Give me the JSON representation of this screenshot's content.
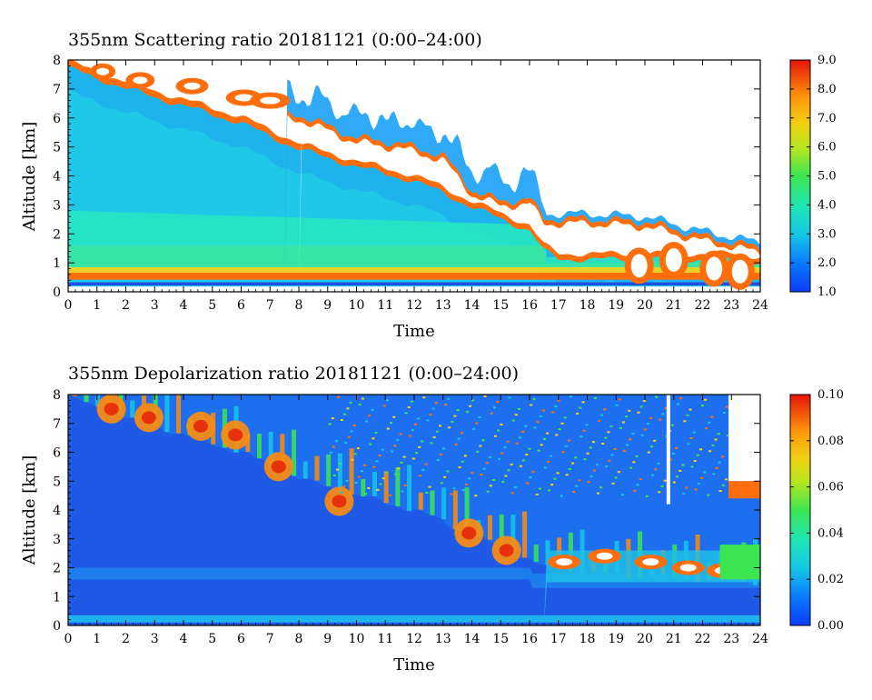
{
  "chart_data": [
    {
      "type": "heatmap",
      "title": "355nm Scattering ratio  20181121 (0:00–24:00)",
      "xlabel": "Time",
      "ylabel": "Altitude [km]",
      "xlim": [
        0,
        24
      ],
      "ylim": [
        0,
        8
      ],
      "x_ticks": [
        0,
        1,
        2,
        3,
        4,
        5,
        6,
        7,
        8,
        9,
        10,
        11,
        12,
        13,
        14,
        15,
        16,
        17,
        18,
        19,
        20,
        21,
        22,
        23,
        24
      ],
      "y_ticks": [
        0,
        1,
        2,
        3,
        4,
        5,
        6,
        7,
        8
      ],
      "colorbar": {
        "min": 1.0,
        "max": 9.0,
        "ticks": [
          "1.0",
          "2.0",
          "3.0",
          "4.0",
          "5.0",
          "6.0",
          "7.0",
          "8.0",
          "9.0"
        ]
      },
      "cloud_top_km": [
        [
          0,
          7.9
        ],
        [
          2,
          7.2
        ],
        [
          4,
          6.6
        ],
        [
          6,
          6.0
        ],
        [
          8,
          5.1
        ],
        [
          10,
          4.5
        ],
        [
          12,
          4.0
        ],
        [
          13,
          3.6
        ],
        [
          14,
          3.1
        ],
        [
          15,
          2.7
        ],
        [
          16,
          2.3
        ],
        [
          16.5,
          1.6
        ],
        [
          17,
          1.3
        ],
        [
          18,
          1.3
        ],
        [
          19,
          1.3
        ],
        [
          20,
          1.3
        ],
        [
          21,
          1.3
        ],
        [
          22,
          1.3
        ],
        [
          23,
          1.3
        ],
        [
          24,
          1.2
        ]
      ],
      "clear_above_km": [
        [
          8,
          6.0
        ],
        [
          10,
          5.2
        ],
        [
          11.5,
          5.0
        ],
        [
          13,
          4.6
        ],
        [
          14,
          3.4
        ],
        [
          15,
          3.0
        ],
        [
          16,
          3.1
        ],
        [
          16.5,
          2.4
        ],
        [
          18,
          2.4
        ],
        [
          20,
          2.3
        ],
        [
          22,
          1.8
        ],
        [
          24,
          1.4
        ]
      ]
    },
    {
      "type": "heatmap",
      "title": "355nm Depolarization ratio  20181121 (0:00–24:00)",
      "xlabel": "Time",
      "ylabel": "Altitude [km]",
      "xlim": [
        0,
        24
      ],
      "ylim": [
        0,
        8
      ],
      "x_ticks": [
        0,
        1,
        2,
        3,
        4,
        5,
        6,
        7,
        8,
        9,
        10,
        11,
        12,
        13,
        14,
        15,
        16,
        17,
        18,
        19,
        20,
        21,
        22,
        23,
        24
      ],
      "y_ticks": [
        0,
        1,
        2,
        3,
        4,
        5,
        6,
        7,
        8
      ],
      "colorbar": {
        "min": 0.0,
        "max": 0.1,
        "ticks": [
          "0.00",
          "0.02",
          "0.04",
          "0.06",
          "0.08",
          "0.10"
        ]
      },
      "cloud_top_km": [
        [
          0,
          7.9
        ],
        [
          2,
          7.2
        ],
        [
          4,
          6.6
        ],
        [
          6,
          6.0
        ],
        [
          8,
          5.1
        ],
        [
          10,
          4.5
        ],
        [
          12,
          4.0
        ],
        [
          13,
          3.6
        ],
        [
          14,
          3.1
        ],
        [
          15,
          2.7
        ],
        [
          16,
          2.3
        ],
        [
          16.5,
          2.0
        ],
        [
          18,
          1.8
        ],
        [
          20,
          1.7
        ],
        [
          22,
          1.6
        ],
        [
          24,
          1.5
        ]
      ]
    }
  ],
  "colors": {
    "scale": [
      "#0a3cff",
      "#0a78ff",
      "#14b4f0",
      "#1ee6c8",
      "#3ce65a",
      "#96e61e",
      "#f0e614",
      "#ffb40a",
      "#ff6e0a",
      "#e61e0a"
    ],
    "cloud_depol": "#1474e6",
    "clear_depol": "#1e5ae6"
  }
}
